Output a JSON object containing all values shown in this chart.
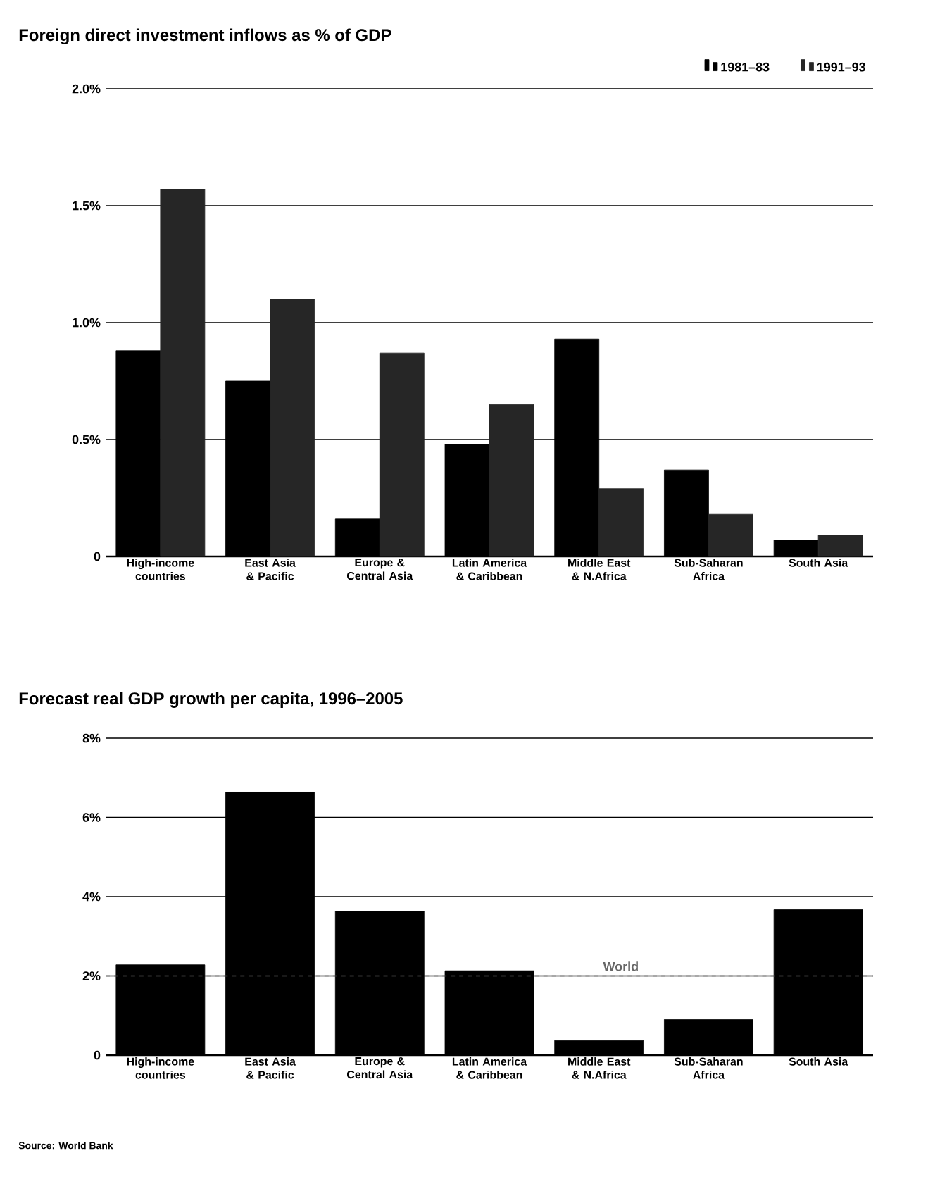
{
  "chart_data": [
    {
      "type": "bar",
      "title": "Foreign direct investment inflows as % of GDP",
      "categories": [
        "High-income countries",
        "East Asia & Pacific",
        "Europe & Central Asia",
        "Latin America & Caribbean",
        "Middle East & N.Africa",
        "Sub-Saharan Africa",
        "South Asia"
      ],
      "series": [
        {
          "name": "1981–83",
          "color": "#000000",
          "values": [
            0.88,
            0.75,
            0.16,
            0.48,
            0.93,
            0.37,
            0.07
          ]
        },
        {
          "name": "1991–93",
          "color": "#262626",
          "values": [
            1.57,
            1.1,
            0.87,
            0.65,
            0.29,
            0.18,
            0.09
          ]
        }
      ],
      "ylim": [
        0,
        2.0
      ],
      "yticks": [
        {
          "value": 0,
          "label": "0"
        },
        {
          "value": 0.5,
          "label": "0.5%"
        },
        {
          "value": 1.0,
          "label": "1.0%"
        },
        {
          "value": 1.5,
          "label": "1.5%"
        },
        {
          "value": 2.0,
          "label": "2.0%"
        }
      ],
      "grid": "y",
      "legend": "top right"
    },
    {
      "type": "bar",
      "title": "Forecast real GDP growth per capita, 1996–2005",
      "categories": [
        "High-income countries",
        "East Asia & Pacific",
        "Europe & Central Asia",
        "Latin America & Caribbean",
        "Middle East & N.Africa",
        "Sub-Saharan Africa",
        "South Asia"
      ],
      "values": [
        2.28,
        6.64,
        3.63,
        2.13,
        0.37,
        0.9,
        3.67
      ],
      "color": "#000000",
      "ylim": [
        0,
        8
      ],
      "yticks": [
        {
          "value": 0,
          "label": "0"
        },
        {
          "value": 2,
          "label": "2%"
        },
        {
          "value": 4,
          "label": "4%"
        },
        {
          "value": 6,
          "label": "6%"
        },
        {
          "value": 8,
          "label": "8%"
        }
      ],
      "grid": "y",
      "ref_lines": [
        {
          "axis": "y",
          "value": 2.0,
          "label": "World",
          "color": "#666666",
          "line_style": "dashed"
        }
      ],
      "annotations": [
        "Source: World Bank"
      ]
    }
  ]
}
